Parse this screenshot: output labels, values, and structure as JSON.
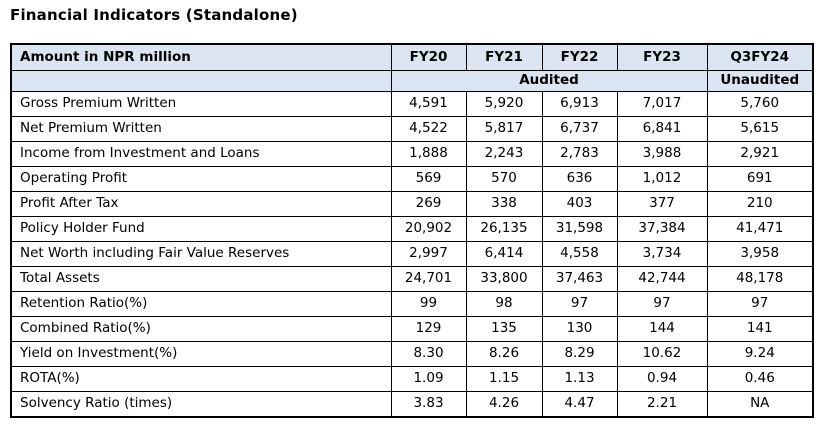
{
  "title": "Financial Indicators (Standalone)",
  "table": {
    "corner_header": "Amount in NPR million",
    "year_headers": [
      "FY20",
      "FY21",
      "FY22",
      "FY23",
      "Q3FY24"
    ],
    "audit_row": {
      "audited_label": "Audited",
      "unaudited_label": "Unaudited"
    },
    "rows": [
      {
        "label": "Gross Premium Written",
        "values": [
          "4,591",
          "5,920",
          "6,913",
          "7,017",
          "5,760"
        ]
      },
      {
        "label": "Net Premium Written",
        "values": [
          "4,522",
          "5,817",
          "6,737",
          "6,841",
          "5,615"
        ]
      },
      {
        "label": "Income from Investment and Loans",
        "values": [
          "1,888",
          "2,243",
          "2,783",
          "3,988",
          "2,921"
        ]
      },
      {
        "label": "Operating Profit",
        "values": [
          "569",
          "570",
          "636",
          "1,012",
          "691"
        ]
      },
      {
        "label": "Profit After Tax",
        "values": [
          "269",
          "338",
          "403",
          "377",
          "210"
        ]
      },
      {
        "label": "Policy Holder Fund",
        "values": [
          "20,902",
          "26,135",
          "31,598",
          "37,384",
          "41,471"
        ]
      },
      {
        "label": "Net Worth including Fair Value Reserves",
        "values": [
          "2,997",
          "6,414",
          "4,558",
          "3,734",
          "3,958"
        ]
      },
      {
        "label": "Total Assets",
        "values": [
          "24,701",
          "33,800",
          "37,463",
          "42,744",
          "48,178"
        ]
      },
      {
        "label": "Retention Ratio(%)",
        "values": [
          "99",
          "98",
          "97",
          "97",
          "97"
        ]
      },
      {
        "label": "Combined Ratio(%)",
        "values": [
          "129",
          "135",
          "130",
          "144",
          "141"
        ]
      },
      {
        "label": "Yield on Investment(%)",
        "values": [
          "8.30",
          "8.26",
          "8.29",
          "10.62",
          "9.24"
        ]
      },
      {
        "label": "ROTA(%)",
        "values": [
          "1.09",
          "1.15",
          "1.13",
          "0.94",
          "0.46"
        ]
      },
      {
        "label": "Solvency Ratio (times)",
        "values": [
          "3.83",
          "4.26",
          "4.47",
          "2.21",
          "NA"
        ]
      }
    ]
  },
  "colors": {
    "header_bg": "#dbe5f1",
    "border": "#000000",
    "text": "#000000",
    "page_bg": "#ffffff"
  }
}
